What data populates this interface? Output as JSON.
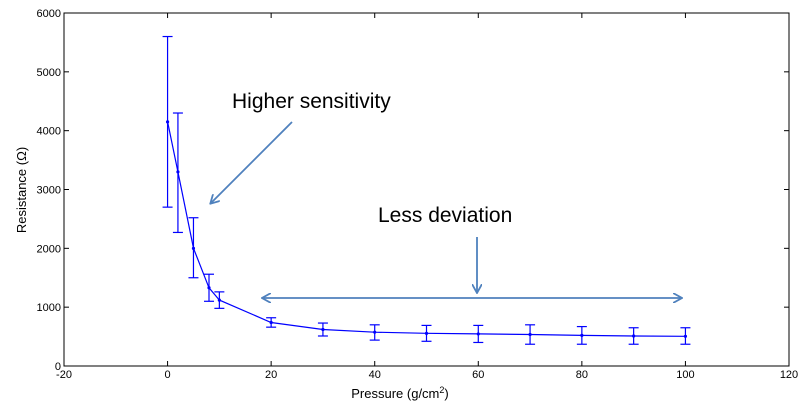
{
  "chart_data": {
    "type": "line",
    "xlabel": "Pressure (g/cm",
    "xlabel_superscript": "2",
    "xlabel_close": ")",
    "ylabel": "Resistance (Ω)",
    "xlim": [
      -20,
      120
    ],
    "ylim": [
      0,
      6000
    ],
    "x_ticks": [
      -20,
      0,
      20,
      40,
      60,
      80,
      100,
      120
    ],
    "y_ticks": [
      0,
      1000,
      2000,
      3000,
      4000,
      5000,
      6000
    ],
    "grid": false,
    "line_color": "#0000ff",
    "annotation_color": "#4f81bd",
    "points": [
      {
        "x": 0,
        "y": 4150,
        "lo": 2700,
        "hi": 5600
      },
      {
        "x": 2,
        "y": 3300,
        "lo": 2270,
        "hi": 4300
      },
      {
        "x": 5,
        "y": 2000,
        "lo": 1500,
        "hi": 2520
      },
      {
        "x": 8,
        "y": 1330,
        "lo": 1100,
        "hi": 1560
      },
      {
        "x": 10,
        "y": 1120,
        "lo": 980,
        "hi": 1260
      },
      {
        "x": 20,
        "y": 740,
        "lo": 660,
        "hi": 820
      },
      {
        "x": 30,
        "y": 620,
        "lo": 510,
        "hi": 730
      },
      {
        "x": 40,
        "y": 575,
        "lo": 440,
        "hi": 700
      },
      {
        "x": 50,
        "y": 555,
        "lo": 420,
        "hi": 690
      },
      {
        "x": 60,
        "y": 545,
        "lo": 400,
        "hi": 690
      },
      {
        "x": 70,
        "y": 535,
        "lo": 370,
        "hi": 700
      },
      {
        "x": 80,
        "y": 520,
        "lo": 370,
        "hi": 670
      },
      {
        "x": 90,
        "y": 510,
        "lo": 370,
        "hi": 650
      },
      {
        "x": 100,
        "y": 505,
        "lo": 370,
        "hi": 650
      }
    ],
    "annotations": {
      "higher_sensitivity": "Higher sensitivity",
      "less_deviation": "Less deviation"
    }
  }
}
